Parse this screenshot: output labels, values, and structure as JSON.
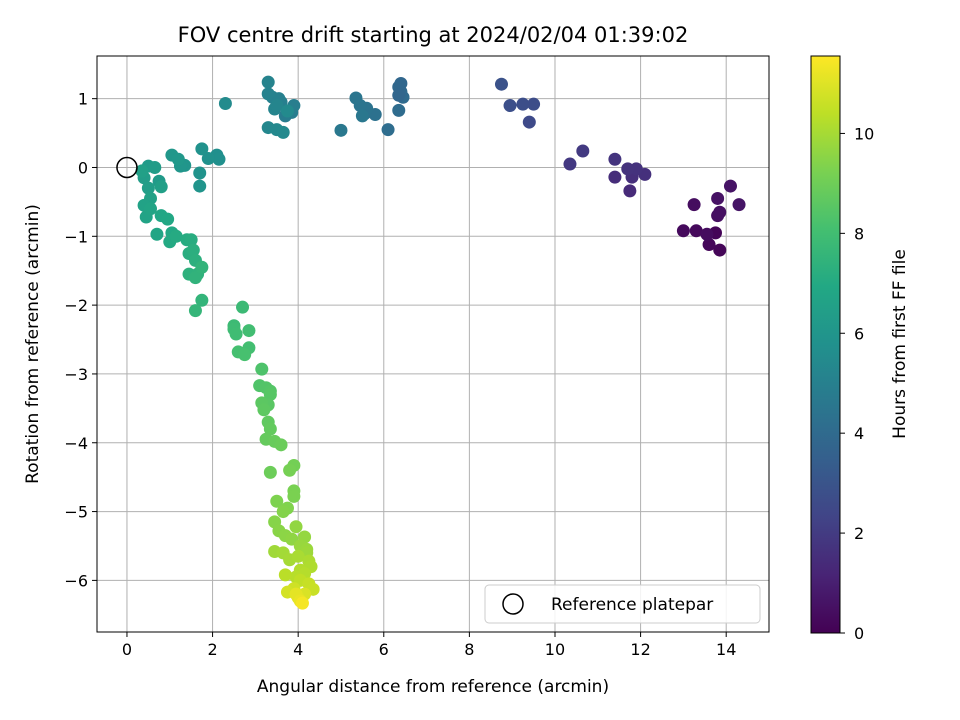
{
  "chart_data": {
    "type": "scatter",
    "title": "FOV centre drift starting at 2024/02/04 01:39:02",
    "xlabel": "Angular distance from reference (arcmin)",
    "ylabel": "Rotation from reference (arcmin)",
    "xlim": [
      -0.7,
      15.0
    ],
    "ylim": [
      -6.75,
      1.62
    ],
    "xticks": [
      0,
      2,
      4,
      6,
      8,
      10,
      12,
      14
    ],
    "yticks": [
      -6,
      -5,
      -4,
      -3,
      -2,
      -1,
      0,
      1
    ],
    "grid": true,
    "colormap": "viridis",
    "colorbar": {
      "label": "Hours from first FF file",
      "range": [
        0,
        11.55
      ],
      "ticks": [
        0,
        2,
        4,
        6,
        8,
        10
      ]
    },
    "reference_marker": {
      "label": "Reference platepar",
      "x": 0,
      "y": 0,
      "style": "open-circle"
    },
    "legend": {
      "entries": [
        "Reference platepar"
      ],
      "placement": "lower-right"
    },
    "points": [
      {
        "x": 13.75,
        "y": -0.95,
        "c": 0.1
      },
      {
        "x": 13.85,
        "y": -1.2,
        "c": 0.15
      },
      {
        "x": 13.6,
        "y": -1.12,
        "c": 0.2
      },
      {
        "x": 13.3,
        "y": -0.92,
        "c": 0.25
      },
      {
        "x": 13.0,
        "y": -0.92,
        "c": 0.3
      },
      {
        "x": 13.55,
        "y": -0.97,
        "c": 0.35
      },
      {
        "x": 13.25,
        "y": -0.54,
        "c": 0.4
      },
      {
        "x": 13.8,
        "y": -0.7,
        "c": 0.45
      },
      {
        "x": 13.85,
        "y": -0.65,
        "c": 0.5
      },
      {
        "x": 13.8,
        "y": -0.45,
        "c": 0.55
      },
      {
        "x": 14.1,
        "y": -0.27,
        "c": 0.6
      },
      {
        "x": 14.3,
        "y": -0.54,
        "c": 0.65
      },
      {
        "x": 11.75,
        "y": -0.34,
        "c": 1.4
      },
      {
        "x": 11.4,
        "y": -0.14,
        "c": 1.5
      },
      {
        "x": 11.8,
        "y": -0.14,
        "c": 1.55
      },
      {
        "x": 12.1,
        "y": -0.1,
        "c": 1.6
      },
      {
        "x": 11.9,
        "y": -0.02,
        "c": 1.65
      },
      {
        "x": 11.7,
        "y": -0.02,
        "c": 1.7
      },
      {
        "x": 11.4,
        "y": 0.12,
        "c": 1.75
      },
      {
        "x": 10.35,
        "y": 0.05,
        "c": 1.9
      },
      {
        "x": 10.65,
        "y": 0.24,
        "c": 1.95
      },
      {
        "x": 9.4,
        "y": 0.66,
        "c": 2.6
      },
      {
        "x": 9.5,
        "y": 0.92,
        "c": 2.7
      },
      {
        "x": 9.25,
        "y": 0.92,
        "c": 2.75
      },
      {
        "x": 8.95,
        "y": 0.9,
        "c": 2.8
      },
      {
        "x": 8.75,
        "y": 1.21,
        "c": 2.9
      },
      {
        "x": 6.35,
        "y": 0.83,
        "c": 4.05
      },
      {
        "x": 6.45,
        "y": 1.02,
        "c": 4.0
      },
      {
        "x": 6.4,
        "y": 1.1,
        "c": 3.95
      },
      {
        "x": 6.35,
        "y": 1.17,
        "c": 3.9
      },
      {
        "x": 6.4,
        "y": 1.22,
        "c": 3.85
      },
      {
        "x": 6.35,
        "y": 1.05,
        "c": 3.8
      },
      {
        "x": 6.1,
        "y": 0.55,
        "c": 4.1
      },
      {
        "x": 5.8,
        "y": 0.77,
        "c": 4.3
      },
      {
        "x": 5.55,
        "y": 0.78,
        "c": 4.35
      },
      {
        "x": 5.6,
        "y": 0.86,
        "c": 4.4
      },
      {
        "x": 5.45,
        "y": 0.9,
        "c": 4.45
      },
      {
        "x": 5.35,
        "y": 1.01,
        "c": 4.5
      },
      {
        "x": 5.5,
        "y": 0.75,
        "c": 4.55
      },
      {
        "x": 5.0,
        "y": 0.54,
        "c": 4.6
      },
      {
        "x": 3.7,
        "y": 0.75,
        "c": 4.8
      },
      {
        "x": 3.85,
        "y": 0.8,
        "c": 4.85
      },
      {
        "x": 3.9,
        "y": 0.9,
        "c": 4.9
      },
      {
        "x": 3.6,
        "y": 0.95,
        "c": 4.95
      },
      {
        "x": 3.55,
        "y": 1.0,
        "c": 5.0
      },
      {
        "x": 3.4,
        "y": 1.02,
        "c": 5.05
      },
      {
        "x": 3.3,
        "y": 1.07,
        "c": 5.1
      },
      {
        "x": 3.3,
        "y": 1.24,
        "c": 5.15
      },
      {
        "x": 3.45,
        "y": 0.85,
        "c": 5.2
      },
      {
        "x": 3.5,
        "y": 0.9,
        "c": 5.25
      },
      {
        "x": 3.3,
        "y": 0.58,
        "c": 5.3
      },
      {
        "x": 3.5,
        "y": 0.55,
        "c": 5.35
      },
      {
        "x": 3.65,
        "y": 0.51,
        "c": 5.4
      },
      {
        "x": 3.75,
        "y": 0.82,
        "c": 5.45
      },
      {
        "x": 2.3,
        "y": 0.93,
        "c": 5.5
      },
      {
        "x": 2.1,
        "y": 0.18,
        "c": 5.7
      },
      {
        "x": 2.15,
        "y": 0.12,
        "c": 5.75
      },
      {
        "x": 1.9,
        "y": 0.13,
        "c": 5.8
      },
      {
        "x": 1.75,
        "y": 0.27,
        "c": 5.85
      },
      {
        "x": 1.7,
        "y": -0.08,
        "c": 5.9
      },
      {
        "x": 1.7,
        "y": -0.27,
        "c": 5.95
      },
      {
        "x": 1.35,
        "y": 0.03,
        "c": 6.0
      },
      {
        "x": 1.25,
        "y": 0.02,
        "c": 6.05
      },
      {
        "x": 1.05,
        "y": 0.18,
        "c": 6.1
      },
      {
        "x": 1.2,
        "y": 0.12,
        "c": 6.15
      },
      {
        "x": 0.75,
        "y": -0.2,
        "c": 6.25
      },
      {
        "x": 0.5,
        "y": 0.02,
        "c": 6.3
      },
      {
        "x": 0.65,
        "y": 0.0,
        "c": 6.35
      },
      {
        "x": 0.4,
        "y": -0.15,
        "c": 6.4
      },
      {
        "x": 0.5,
        "y": -0.3,
        "c": 6.45
      },
      {
        "x": 0.8,
        "y": -0.28,
        "c": 6.5
      },
      {
        "x": 0.35,
        "y": -0.05,
        "c": 6.55
      },
      {
        "x": 0.55,
        "y": -0.45,
        "c": 6.6
      },
      {
        "x": 0.4,
        "y": -0.55,
        "c": 6.65
      },
      {
        "x": 0.45,
        "y": -0.72,
        "c": 6.7
      },
      {
        "x": 0.55,
        "y": -0.6,
        "c": 6.75
      },
      {
        "x": 0.7,
        "y": -0.97,
        "c": 6.8
      },
      {
        "x": 0.8,
        "y": -0.7,
        "c": 6.85
      },
      {
        "x": 0.95,
        "y": -0.75,
        "c": 6.9
      },
      {
        "x": 1.05,
        "y": -0.95,
        "c": 6.95
      },
      {
        "x": 1.0,
        "y": -1.08,
        "c": 7.0
      },
      {
        "x": 1.15,
        "y": -1.0,
        "c": 7.05
      },
      {
        "x": 1.4,
        "y": -1.05,
        "c": 7.1
      },
      {
        "x": 1.5,
        "y": -1.05,
        "c": 7.15
      },
      {
        "x": 1.45,
        "y": -1.25,
        "c": 7.2
      },
      {
        "x": 1.55,
        "y": -1.2,
        "c": 7.25
      },
      {
        "x": 1.6,
        "y": -1.35,
        "c": 7.3
      },
      {
        "x": 1.45,
        "y": -1.55,
        "c": 7.35
      },
      {
        "x": 1.65,
        "y": -1.55,
        "c": 7.4
      },
      {
        "x": 1.6,
        "y": -1.6,
        "c": 7.45
      },
      {
        "x": 1.75,
        "y": -1.45,
        "c": 7.5
      },
      {
        "x": 1.75,
        "y": -1.93,
        "c": 7.55
      },
      {
        "x": 1.6,
        "y": -2.08,
        "c": 7.6
      },
      {
        "x": 2.7,
        "y": -2.03,
        "c": 7.8
      },
      {
        "x": 2.5,
        "y": -2.3,
        "c": 7.85
      },
      {
        "x": 2.5,
        "y": -2.35,
        "c": 7.9
      },
      {
        "x": 2.55,
        "y": -2.42,
        "c": 7.95
      },
      {
        "x": 2.85,
        "y": -2.37,
        "c": 8.0
      },
      {
        "x": 2.85,
        "y": -2.62,
        "c": 8.05
      },
      {
        "x": 2.6,
        "y": -2.68,
        "c": 8.1
      },
      {
        "x": 2.75,
        "y": -2.72,
        "c": 8.15
      },
      {
        "x": 3.15,
        "y": -2.93,
        "c": 8.3
      },
      {
        "x": 3.1,
        "y": -3.17,
        "c": 8.35
      },
      {
        "x": 3.25,
        "y": -3.2,
        "c": 8.4
      },
      {
        "x": 3.35,
        "y": -3.25,
        "c": 8.45
      },
      {
        "x": 3.35,
        "y": -3.3,
        "c": 8.5
      },
      {
        "x": 3.3,
        "y": -3.45,
        "c": 8.55
      },
      {
        "x": 3.15,
        "y": -3.42,
        "c": 8.6
      },
      {
        "x": 3.2,
        "y": -3.52,
        "c": 8.65
      },
      {
        "x": 3.3,
        "y": -3.7,
        "c": 8.7
      },
      {
        "x": 3.35,
        "y": -3.8,
        "c": 8.75
      },
      {
        "x": 3.25,
        "y": -3.95,
        "c": 8.8
      },
      {
        "x": 3.45,
        "y": -3.98,
        "c": 8.85
      },
      {
        "x": 3.6,
        "y": -4.03,
        "c": 8.9
      },
      {
        "x": 3.35,
        "y": -4.43,
        "c": 8.95
      },
      {
        "x": 3.9,
        "y": -4.33,
        "c": 9.1
      },
      {
        "x": 3.8,
        "y": -4.4,
        "c": 9.15
      },
      {
        "x": 3.9,
        "y": -4.7,
        "c": 9.2
      },
      {
        "x": 3.9,
        "y": -4.78,
        "c": 9.25
      },
      {
        "x": 3.5,
        "y": -4.85,
        "c": 9.3
      },
      {
        "x": 3.75,
        "y": -4.95,
        "c": 9.35
      },
      {
        "x": 3.65,
        "y": -5.0,
        "c": 9.4
      },
      {
        "x": 3.45,
        "y": -5.15,
        "c": 9.45
      },
      {
        "x": 3.55,
        "y": -5.28,
        "c": 9.5
      },
      {
        "x": 3.7,
        "y": -5.35,
        "c": 9.55
      },
      {
        "x": 3.85,
        "y": -5.4,
        "c": 9.6
      },
      {
        "x": 3.95,
        "y": -5.22,
        "c": 9.65
      },
      {
        "x": 4.15,
        "y": -5.37,
        "c": 9.7
      },
      {
        "x": 4.05,
        "y": -5.5,
        "c": 9.75
      },
      {
        "x": 4.2,
        "y": -5.55,
        "c": 9.8
      },
      {
        "x": 4.2,
        "y": -5.6,
        "c": 9.85
      },
      {
        "x": 3.45,
        "y": -5.58,
        "c": 9.9
      },
      {
        "x": 3.65,
        "y": -5.6,
        "c": 9.95
      },
      {
        "x": 3.8,
        "y": -5.7,
        "c": 10.0
      },
      {
        "x": 4.0,
        "y": -5.65,
        "c": 10.05
      },
      {
        "x": 4.25,
        "y": -5.72,
        "c": 10.1
      },
      {
        "x": 4.3,
        "y": -5.8,
        "c": 10.15
      },
      {
        "x": 4.05,
        "y": -5.85,
        "c": 10.2
      },
      {
        "x": 4.15,
        "y": -5.9,
        "c": 10.25
      },
      {
        "x": 3.95,
        "y": -5.95,
        "c": 10.3
      },
      {
        "x": 3.7,
        "y": -5.92,
        "c": 10.35
      },
      {
        "x": 4.05,
        "y": -6.0,
        "c": 10.45
      },
      {
        "x": 4.25,
        "y": -6.05,
        "c": 10.55
      },
      {
        "x": 4.35,
        "y": -6.13,
        "c": 10.6
      },
      {
        "x": 3.9,
        "y": -6.12,
        "c": 10.7
      },
      {
        "x": 3.75,
        "y": -6.17,
        "c": 10.8
      },
      {
        "x": 4.15,
        "y": -6.2,
        "c": 10.9
      },
      {
        "x": 4.0,
        "y": -6.25,
        "c": 11.0
      },
      {
        "x": 3.95,
        "y": -6.2,
        "c": 11.1
      },
      {
        "x": 4.05,
        "y": -6.3,
        "c": 11.2
      },
      {
        "x": 4.1,
        "y": -6.33,
        "c": 11.4
      }
    ]
  }
}
